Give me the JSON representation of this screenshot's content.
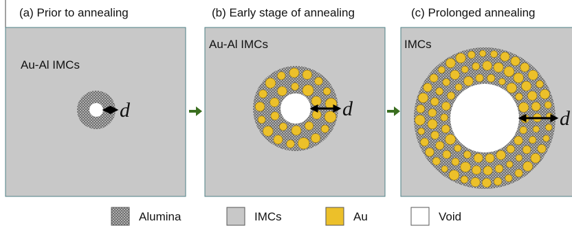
{
  "panels": [
    {
      "title": "(a) Prior to annealing",
      "label": "Au-Al IMCs",
      "dimension": "d"
    },
    {
      "title": "(b) Early stage of annealing",
      "label": "Au-Al IMCs",
      "dimension": "d"
    },
    {
      "title": "(c) Prolonged annealing",
      "label": "IMCs",
      "dimension": "d"
    }
  ],
  "legend": [
    {
      "label": "Alumina"
    },
    {
      "label": "IMCs"
    },
    {
      "label": "Au"
    },
    {
      "label": "Void"
    }
  ]
}
